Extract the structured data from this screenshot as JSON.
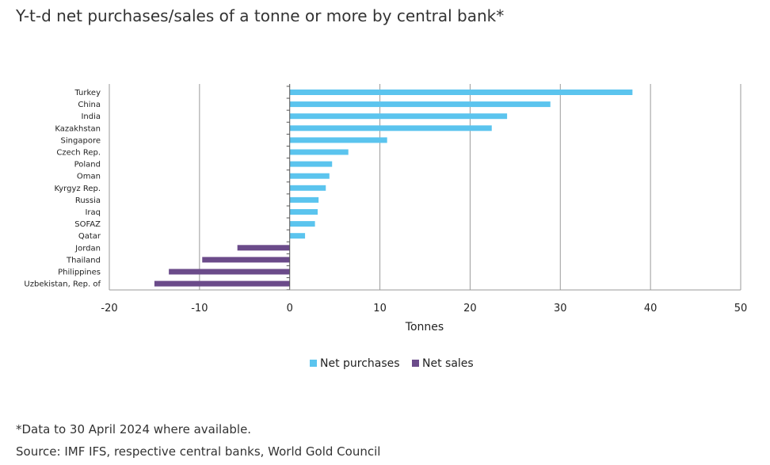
{
  "title": "Y-t-d net purchases/sales of a tonne or more by central bank*",
  "footnotes": {
    "data_note": "*Data to 30 April 2024 where available.",
    "source": "Source: IMF IFS, respective central banks, World Gold Council"
  },
  "colors": {
    "net_purchases": "#5bc4ee",
    "net_sales": "#6b4b8a",
    "gridline": "#9a9a9a",
    "axis": "#555555"
  },
  "chart_data": {
    "type": "bar",
    "orientation": "horizontal",
    "xlabel": "Tonnes",
    "xlim": [
      -20,
      50
    ],
    "xticks": [
      -20,
      -10,
      0,
      10,
      20,
      30,
      40,
      50
    ],
    "xtick_labels": [
      "-20",
      "-10",
      "0",
      "10",
      "20",
      "30",
      "40",
      "50"
    ],
    "grid": true,
    "legend_position": "bottom",
    "categories": [
      "Turkey",
      "China",
      "India",
      "Kazakhstan",
      "Singapore",
      "Czech Rep.",
      "Poland",
      "Oman",
      "Kyrgyz Rep.",
      "Russia",
      "Iraq",
      "SOFAZ",
      "Qatar",
      "Jordan",
      "Thailand",
      "Philippines",
      "Uzbekistan, Rep. of"
    ],
    "values": [
      38.0,
      28.9,
      24.1,
      22.4,
      10.8,
      6.5,
      4.7,
      4.4,
      4.0,
      3.2,
      3.1,
      2.8,
      1.7,
      -5.8,
      -9.7,
      -13.4,
      -15.0
    ],
    "series": [
      {
        "name": "Net purchases"
      },
      {
        "name": "Net sales"
      }
    ]
  }
}
